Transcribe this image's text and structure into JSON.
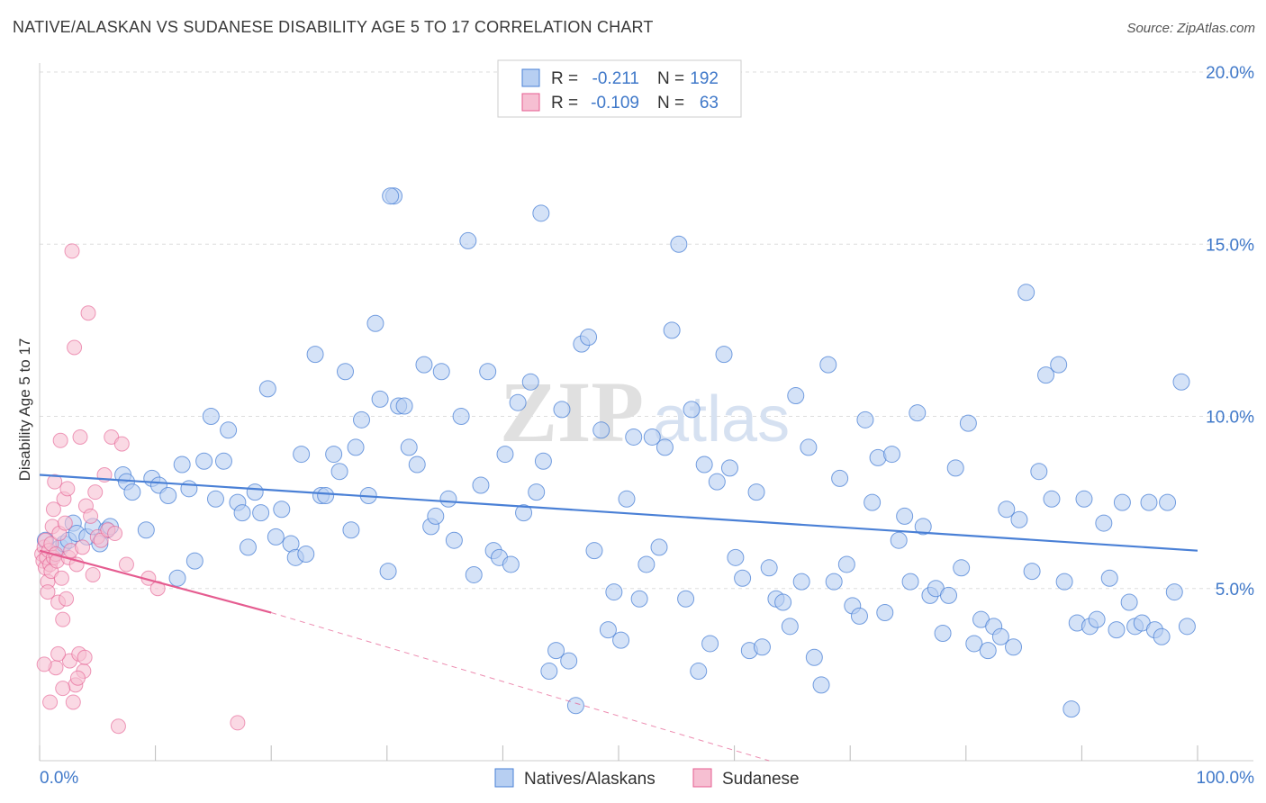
{
  "title": "NATIVE/ALASKAN VS SUDANESE DISABILITY AGE 5 TO 17 CORRELATION CHART",
  "source": "Source: ZipAtlas.com",
  "watermark": {
    "zip": "ZIP",
    "atlas": "atlas"
  },
  "colors": {
    "blue": "#4a80d6",
    "blue_fill": "#b7cff2",
    "pink": "#e55c90",
    "pink_fill": "#f6bfd2",
    "tick": "#3f78c9",
    "grid": "#dddddd"
  },
  "legend": {
    "r_label": "R =",
    "n_label": "N =",
    "rows": [
      {
        "r": "-0.211",
        "n": "192",
        "color": "#4a80d6"
      },
      {
        "r": "-0.109",
        "n": "63",
        "color": "#e55c90"
      }
    ]
  },
  "chart_data": {
    "type": "scatter",
    "title": "NATIVE/ALASKAN VS SUDANESE DISABILITY AGE 5 TO 17 CORRELATION CHART",
    "xlabel": "",
    "ylabel": "Disability Age 5 to 17",
    "xlim": [
      0,
      100
    ],
    "ylim": [
      0,
      20
    ],
    "x_tick_labels": [
      "0.0%",
      "100.0%"
    ],
    "y_ticks": [
      5,
      10,
      15,
      20
    ],
    "y_tick_labels": [
      "5.0%",
      "10.0%",
      "15.0%",
      "20.0%"
    ],
    "grid": true,
    "legend_position": "bottom",
    "series": [
      {
        "name": "Natives/Alaskans",
        "color": "#4a80d6",
        "r": -0.211,
        "n": 192,
        "trend": {
          "x": [
            0,
            100
          ],
          "y": [
            8.3,
            6.1
          ],
          "style": "solid"
        },
        "points": [
          [
            0.5,
            6.4
          ],
          [
            1.2,
            6.0
          ],
          [
            1.8,
            6.2
          ],
          [
            2.1,
            6.3
          ],
          [
            2.5,
            6.4
          ],
          [
            2.9,
            6.9
          ],
          [
            3.2,
            6.6
          ],
          [
            4.1,
            6.5
          ],
          [
            4.6,
            6.8
          ],
          [
            5.2,
            6.3
          ],
          [
            5.8,
            6.7
          ],
          [
            6.1,
            6.8
          ],
          [
            7.2,
            8.3
          ],
          [
            7.5,
            8.1
          ],
          [
            8.0,
            7.8
          ],
          [
            9.2,
            6.7
          ],
          [
            9.7,
            8.2
          ],
          [
            10.3,
            8.0
          ],
          [
            11.1,
            7.7
          ],
          [
            11.9,
            5.3
          ],
          [
            12.3,
            8.6
          ],
          [
            12.9,
            7.9
          ],
          [
            13.4,
            5.8
          ],
          [
            14.2,
            8.7
          ],
          [
            14.8,
            10.0
          ],
          [
            15.2,
            7.6
          ],
          [
            15.9,
            8.7
          ],
          [
            16.3,
            9.6
          ],
          [
            17.1,
            7.5
          ],
          [
            17.5,
            7.2
          ],
          [
            18.0,
            6.2
          ],
          [
            18.6,
            7.8
          ],
          [
            19.1,
            7.2
          ],
          [
            19.7,
            10.8
          ],
          [
            20.4,
            6.5
          ],
          [
            20.9,
            7.3
          ],
          [
            21.7,
            6.3
          ],
          [
            22.1,
            5.9
          ],
          [
            22.6,
            8.9
          ],
          [
            23.0,
            6.0
          ],
          [
            23.8,
            11.8
          ],
          [
            24.3,
            7.7
          ],
          [
            24.7,
            7.7
          ],
          [
            25.4,
            8.9
          ],
          [
            25.9,
            8.4
          ],
          [
            26.4,
            11.3
          ],
          [
            26.9,
            6.7
          ],
          [
            27.3,
            9.1
          ],
          [
            27.8,
            9.9
          ],
          [
            28.4,
            7.7
          ],
          [
            29.0,
            12.7
          ],
          [
            29.4,
            10.5
          ],
          [
            30.1,
            5.5
          ],
          [
            30.6,
            16.4
          ],
          [
            31.0,
            10.3
          ],
          [
            31.5,
            10.3
          ],
          [
            31.9,
            9.1
          ],
          [
            32.6,
            8.6
          ],
          [
            33.2,
            11.5
          ],
          [
            33.8,
            6.8
          ],
          [
            34.2,
            7.1
          ],
          [
            34.7,
            11.3
          ],
          [
            35.3,
            7.6
          ],
          [
            35.8,
            6.4
          ],
          [
            36.4,
            10.0
          ],
          [
            37.0,
            15.1
          ],
          [
            37.5,
            5.4
          ],
          [
            38.1,
            8.0
          ],
          [
            38.7,
            11.3
          ],
          [
            39.2,
            6.1
          ],
          [
            39.7,
            5.9
          ],
          [
            40.2,
            8.9
          ],
          [
            40.7,
            5.7
          ],
          [
            41.3,
            10.4
          ],
          [
            41.8,
            7.2
          ],
          [
            42.4,
            11.0
          ],
          [
            42.9,
            7.8
          ],
          [
            43.5,
            8.7
          ],
          [
            44.0,
            2.6
          ],
          [
            44.6,
            3.2
          ],
          [
            45.1,
            10.2
          ],
          [
            45.7,
            2.9
          ],
          [
            46.3,
            1.6
          ],
          [
            46.8,
            12.1
          ],
          [
            47.4,
            12.3
          ],
          [
            47.9,
            6.1
          ],
          [
            48.5,
            9.6
          ],
          [
            49.1,
            3.8
          ],
          [
            49.6,
            4.9
          ],
          [
            50.2,
            3.5
          ],
          [
            50.7,
            7.6
          ],
          [
            51.3,
            9.4
          ],
          [
            51.8,
            4.7
          ],
          [
            52.4,
            5.7
          ],
          [
            52.9,
            9.4
          ],
          [
            53.5,
            6.2
          ],
          [
            54.0,
            9.1
          ],
          [
            54.6,
            12.5
          ],
          [
            55.2,
            15.0
          ],
          [
            55.8,
            4.7
          ],
          [
            56.3,
            10.2
          ],
          [
            56.9,
            2.6
          ],
          [
            57.4,
            8.6
          ],
          [
            57.9,
            3.4
          ],
          [
            58.5,
            8.1
          ],
          [
            59.1,
            11.8
          ],
          [
            59.6,
            8.5
          ],
          [
            60.1,
            5.9
          ],
          [
            60.7,
            5.3
          ],
          [
            61.3,
            3.2
          ],
          [
            61.9,
            7.8
          ],
          [
            62.4,
            3.3
          ],
          [
            63.0,
            5.6
          ],
          [
            63.6,
            4.7
          ],
          [
            64.2,
            4.6
          ],
          [
            64.8,
            3.9
          ],
          [
            65.3,
            10.6
          ],
          [
            65.8,
            5.2
          ],
          [
            66.4,
            9.1
          ],
          [
            66.9,
            3.0
          ],
          [
            67.5,
            2.2
          ],
          [
            68.1,
            11.5
          ],
          [
            68.6,
            5.2
          ],
          [
            69.1,
            8.2
          ],
          [
            69.7,
            5.7
          ],
          [
            70.2,
            4.5
          ],
          [
            70.8,
            4.2
          ],
          [
            71.3,
            9.9
          ],
          [
            71.9,
            7.5
          ],
          [
            72.4,
            8.8
          ],
          [
            73.0,
            4.3
          ],
          [
            73.6,
            8.9
          ],
          [
            74.2,
            6.4
          ],
          [
            74.7,
            7.1
          ],
          [
            75.2,
            5.2
          ],
          [
            75.8,
            10.1
          ],
          [
            76.3,
            6.8
          ],
          [
            76.9,
            4.8
          ],
          [
            77.4,
            5.0
          ],
          [
            78.0,
            3.7
          ],
          [
            78.5,
            4.8
          ],
          [
            79.1,
            8.5
          ],
          [
            79.6,
            5.6
          ],
          [
            80.2,
            9.8
          ],
          [
            80.7,
            3.4
          ],
          [
            81.3,
            4.1
          ],
          [
            81.9,
            3.2
          ],
          [
            82.4,
            3.9
          ],
          [
            83.0,
            3.6
          ],
          [
            83.5,
            7.3
          ],
          [
            84.1,
            3.3
          ],
          [
            84.6,
            7.0
          ],
          [
            85.2,
            13.6
          ],
          [
            85.7,
            5.5
          ],
          [
            86.3,
            8.4
          ],
          [
            86.9,
            11.2
          ],
          [
            87.4,
            7.6
          ],
          [
            88.0,
            11.5
          ],
          [
            88.5,
            5.2
          ],
          [
            89.1,
            1.5
          ],
          [
            89.6,
            4.0
          ],
          [
            90.2,
            7.6
          ],
          [
            90.7,
            3.9
          ],
          [
            91.3,
            4.1
          ],
          [
            91.9,
            6.9
          ],
          [
            92.4,
            5.3
          ],
          [
            93.0,
            3.8
          ],
          [
            93.5,
            7.5
          ],
          [
            94.1,
            4.6
          ],
          [
            94.6,
            3.9
          ],
          [
            95.2,
            4.0
          ],
          [
            95.8,
            7.5
          ],
          [
            96.3,
            3.8
          ],
          [
            96.9,
            3.6
          ],
          [
            97.4,
            7.5
          ],
          [
            98.0,
            4.9
          ],
          [
            98.6,
            11.0
          ],
          [
            99.1,
            3.9
          ],
          [
            30.3,
            16.4
          ],
          [
            43.3,
            15.9
          ]
        ]
      },
      {
        "name": "Sudanese",
        "color": "#e55c90",
        "r": -0.109,
        "n": 63,
        "trend": {
          "x": [
            0,
            20
          ],
          "y": [
            6.1,
            4.3
          ],
          "style": "solid"
        },
        "trend_ext": {
          "x": [
            20,
            63
          ],
          "y": [
            4.3,
            0.0
          ],
          "style": "dashed"
        },
        "points": [
          [
            0.2,
            6.0
          ],
          [
            0.3,
            5.8
          ],
          [
            0.4,
            6.2
          ],
          [
            0.5,
            5.6
          ],
          [
            0.5,
            6.4
          ],
          [
            0.6,
            5.9
          ],
          [
            0.7,
            5.2
          ],
          [
            0.8,
            6.1
          ],
          [
            0.9,
            5.7
          ],
          [
            1.0,
            6.3
          ],
          [
            1.0,
            5.5
          ],
          [
            1.1,
            6.8
          ],
          [
            1.2,
            5.9
          ],
          [
            1.3,
            8.1
          ],
          [
            1.4,
            6.0
          ],
          [
            1.5,
            5.8
          ],
          [
            1.6,
            4.6
          ],
          [
            1.7,
            6.6
          ],
          [
            1.8,
            9.3
          ],
          [
            1.9,
            5.3
          ],
          [
            2.0,
            4.1
          ],
          [
            2.1,
            7.6
          ],
          [
            2.2,
            6.9
          ],
          [
            2.3,
            4.7
          ],
          [
            2.4,
            7.9
          ],
          [
            2.5,
            5.9
          ],
          [
            2.6,
            2.9
          ],
          [
            2.7,
            6.1
          ],
          [
            2.8,
            14.8
          ],
          [
            3.0,
            12.0
          ],
          [
            3.1,
            2.2
          ],
          [
            3.2,
            5.7
          ],
          [
            3.4,
            3.1
          ],
          [
            3.5,
            9.4
          ],
          [
            3.7,
            6.2
          ],
          [
            3.8,
            2.6
          ],
          [
            4.0,
            7.4
          ],
          [
            4.2,
            13.0
          ],
          [
            4.4,
            7.1
          ],
          [
            4.6,
            5.4
          ],
          [
            4.8,
            7.8
          ],
          [
            5.0,
            6.5
          ],
          [
            5.3,
            6.4
          ],
          [
            5.6,
            8.3
          ],
          [
            5.9,
            6.7
          ],
          [
            6.2,
            9.4
          ],
          [
            6.5,
            6.6
          ],
          [
            6.8,
            1.0
          ],
          [
            7.1,
            9.2
          ],
          [
            7.5,
            5.7
          ],
          [
            0.9,
            1.7
          ],
          [
            1.4,
            2.7
          ],
          [
            2.0,
            2.1
          ],
          [
            2.9,
            1.7
          ],
          [
            3.3,
            2.4
          ],
          [
            3.9,
            3.0
          ],
          [
            9.4,
            5.3
          ],
          [
            10.2,
            5.0
          ],
          [
            17.1,
            1.1
          ],
          [
            1.6,
            3.1
          ],
          [
            0.4,
            2.8
          ],
          [
            0.7,
            4.9
          ],
          [
            1.2,
            7.3
          ]
        ]
      }
    ]
  },
  "bottom_legend": [
    "Natives/Alaskans",
    "Sudanese"
  ]
}
